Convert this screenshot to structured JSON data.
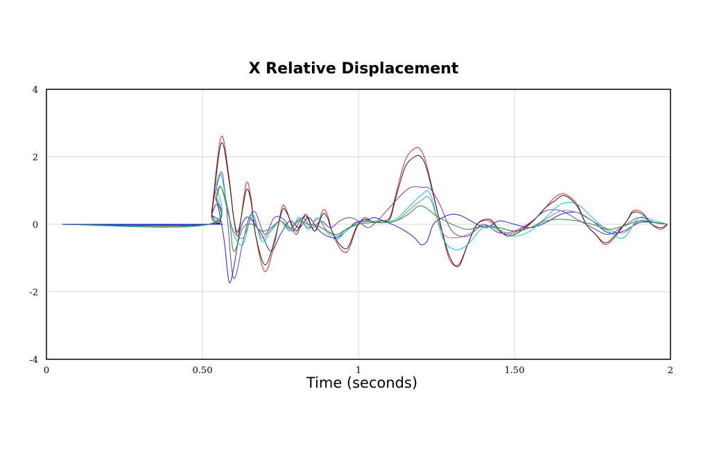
{
  "chart_data": {
    "type": "line",
    "title": "X Relative Displacement",
    "xlabel": "Time (seconds)",
    "ylabel": "",
    "xlim": [
      0,
      2
    ],
    "ylim": [
      -4,
      4
    ],
    "x_ticks": [
      0,
      0.5,
      1,
      1.5,
      2
    ],
    "x_tick_labels": [
      "0",
      "0.50",
      "1",
      "1.50",
      "2"
    ],
    "y_ticks": [
      4,
      2,
      0,
      -2,
      -4
    ],
    "y_tick_labels": [
      "4",
      "2",
      "0",
      "-2",
      "-4"
    ],
    "grid": true,
    "legend": "none",
    "series": [
      {
        "color": "#e02020",
        "x": [
          0.05,
          0.52,
          0.53,
          0.56,
          0.585,
          0.6,
          0.615,
          0.64,
          0.655,
          0.67,
          0.7,
          0.73,
          0.755,
          0.77,
          0.8,
          0.83,
          0.86,
          0.885,
          0.9,
          0.915,
          0.94,
          0.965,
          0.99,
          1.0,
          1.02,
          1.05,
          1.07,
          1.1,
          1.12,
          1.15,
          1.18,
          1.2,
          1.22,
          1.26,
          1.29,
          1.32,
          1.35,
          1.38,
          1.42,
          1.45,
          1.48,
          1.52,
          1.56,
          1.6,
          1.63,
          1.66,
          1.7,
          1.73,
          1.76,
          1.79,
          1.82,
          1.86,
          1.88,
          1.91,
          1.94,
          1.97,
          1.99
        ],
        "y": [
          0,
          0,
          0.4,
          2.6,
          1.4,
          0.2,
          -0.3,
          1.2,
          0.8,
          -0.3,
          -1.4,
          -0.6,
          0.5,
          0.4,
          -0.3,
          0.3,
          -0.2,
          0.4,
          0.3,
          -0.2,
          -0.7,
          -0.8,
          -0.2,
          0,
          0.2,
          0.05,
          0.1,
          0.2,
          0.9,
          1.9,
          2.25,
          2.2,
          1.7,
          0.1,
          -1.0,
          -1.2,
          -0.6,
          0,
          0.1,
          -0.2,
          -0.3,
          -0.15,
          0.1,
          0.5,
          0.8,
          0.9,
          0.6,
          0,
          -0.3,
          -0.6,
          -0.4,
          0.1,
          0.4,
          0.35,
          0,
          -0.15,
          0
        ]
      },
      {
        "color": "#1a1a1a",
        "x": [
          0.05,
          0.52,
          0.53,
          0.56,
          0.585,
          0.6,
          0.615,
          0.64,
          0.655,
          0.67,
          0.7,
          0.73,
          0.755,
          0.77,
          0.8,
          0.83,
          0.86,
          0.885,
          0.9,
          0.915,
          0.94,
          0.965,
          0.99,
          1.0,
          1.02,
          1.05,
          1.07,
          1.1,
          1.12,
          1.15,
          1.18,
          1.2,
          1.22,
          1.26,
          1.29,
          1.32,
          1.35,
          1.38,
          1.42,
          1.45,
          1.48,
          1.52,
          1.56,
          1.6,
          1.63,
          1.66,
          1.7,
          1.73,
          1.76,
          1.79,
          1.82,
          1.86,
          1.88,
          1.91,
          1.94,
          1.97,
          1.99
        ],
        "y": [
          0,
          0,
          0.3,
          2.4,
          1.3,
          0.2,
          -0.2,
          1.0,
          0.7,
          -0.3,
          -1.2,
          -0.5,
          0.4,
          0.35,
          -0.2,
          0.25,
          -0.2,
          0.3,
          0.2,
          -0.2,
          -0.6,
          -0.7,
          -0.15,
          0,
          0.15,
          0.05,
          0.1,
          0.15,
          0.8,
          1.7,
          2.0,
          2.0,
          1.6,
          0.1,
          -0.9,
          -1.25,
          -0.6,
          0,
          0.15,
          -0.15,
          -0.35,
          -0.2,
          0.1,
          0.5,
          0.7,
          0.85,
          0.55,
          0,
          -0.3,
          -0.55,
          -0.35,
          0.1,
          0.35,
          0.3,
          0,
          -0.1,
          0
        ]
      },
      {
        "color": "#7030d0",
        "x": [
          0.05,
          0.52,
          0.54,
          0.56,
          0.57,
          0.58,
          0.6,
          0.63,
          0.65,
          0.67,
          0.7,
          0.73,
          0.76,
          0.79,
          0.82,
          0.85,
          0.88,
          0.91,
          0.94,
          0.97,
          1.0,
          1.03,
          1.06,
          1.1,
          1.14,
          1.17,
          1.2,
          1.23,
          1.26,
          1.3,
          1.35,
          1.4,
          1.45,
          1.5,
          1.55,
          1.6,
          1.65,
          1.7,
          1.75,
          1.8,
          1.85,
          1.9,
          1.95,
          1.99
        ],
        "y": [
          0,
          0,
          0.9,
          1.55,
          1.1,
          0.2,
          -1.6,
          -0.5,
          0.2,
          0.35,
          -0.3,
          0.2,
          0.15,
          -0.2,
          0.2,
          -0.1,
          0.1,
          -0.1,
          0.1,
          0.2,
          0.1,
          -0.1,
          0.1,
          0.5,
          0.9,
          1.1,
          1.1,
          1.05,
          0.6,
          -0.2,
          -0.35,
          0,
          -0.25,
          -0.2,
          0.05,
          0.4,
          0.4,
          0.15,
          -0.1,
          -0.3,
          -0.05,
          0.2,
          0.05,
          0
        ]
      },
      {
        "color": "#2020d0",
        "x": [
          0.05,
          0.52,
          0.53,
          0.545,
          0.555,
          0.57,
          0.585,
          0.6,
          0.62,
          0.64,
          0.66,
          0.69,
          0.72,
          0.75,
          0.78,
          0.81,
          0.84,
          0.87,
          0.9,
          0.93,
          0.96,
          0.99,
          1.02,
          1.05,
          1.08,
          1.12,
          1.15,
          1.18,
          1.2,
          1.22,
          1.24,
          1.27,
          1.3,
          1.33,
          1.37,
          1.41,
          1.45,
          1.5,
          1.55,
          1.6,
          1.65,
          1.7,
          1.75,
          1.8,
          1.85,
          1.9,
          1.95,
          1.99
        ],
        "y": [
          0,
          0,
          0.3,
          0.6,
          0.3,
          -0.5,
          -1.7,
          -1.3,
          -0.2,
          0.2,
          0.1,
          -0.3,
          -0.8,
          -0.3,
          0.1,
          -0.1,
          0.2,
          -0.15,
          -0.35,
          -0.4,
          -0.2,
          0.05,
          0.1,
          0.2,
          0.1,
          -0.05,
          -0.2,
          -0.4,
          -0.6,
          -0.5,
          0,
          0.2,
          0.3,
          0.25,
          0.05,
          -0.1,
          0.1,
          0,
          -0.1,
          0.05,
          0.3,
          0.35,
          0.1,
          -0.25,
          -0.2,
          0.05,
          0.05,
          0
        ]
      },
      {
        "color": "#00cccc",
        "x": [
          0.05,
          0.52,
          0.545,
          0.56,
          0.58,
          0.6,
          0.63,
          0.66,
          0.69,
          0.72,
          0.75,
          0.78,
          0.81,
          0.84,
          0.87,
          0.9,
          0.93,
          0.96,
          1.0,
          1.04,
          1.08,
          1.12,
          1.16,
          1.2,
          1.23,
          1.27,
          1.31,
          1.35,
          1.4,
          1.45,
          1.5,
          1.55,
          1.6,
          1.65,
          1.7,
          1.75,
          1.8,
          1.85,
          1.9,
          1.95,
          1.99
        ],
        "y": [
          0,
          0,
          1.2,
          1.45,
          0.5,
          -0.3,
          -0.6,
          0.3,
          -0.5,
          -0.2,
          0.1,
          -0.2,
          0.2,
          -0.15,
          0.2,
          -0.25,
          -0.45,
          -0.2,
          0.05,
          0.1,
          0.05,
          0.15,
          0.5,
          0.85,
          0.9,
          -0.4,
          -0.75,
          -0.6,
          -0.1,
          -0.15,
          -0.35,
          -0.2,
          0.2,
          0.6,
          0.6,
          0.2,
          -0.2,
          -0.4,
          0.2,
          0.1,
          0
        ]
      },
      {
        "color": "#808080",
        "x": [
          0.05,
          0.52,
          0.545,
          0.56,
          0.58,
          0.6,
          0.63,
          0.66,
          0.69,
          0.72,
          0.75,
          0.78,
          0.81,
          0.84,
          0.87,
          0.9,
          0.93,
          0.96,
          1.0,
          1.04,
          1.08,
          1.12,
          1.16,
          1.2,
          1.23,
          1.27,
          1.31,
          1.35,
          1.4,
          1.45,
          1.5,
          1.55,
          1.6,
          1.65,
          1.7,
          1.75,
          1.8,
          1.85,
          1.9,
          1.95,
          1.99
        ],
        "y": [
          0,
          0,
          0.9,
          1.1,
          0.4,
          -0.2,
          -0.4,
          0.2,
          -0.4,
          -0.15,
          0.1,
          -0.15,
          0.15,
          -0.1,
          0.15,
          -0.2,
          -0.35,
          -0.15,
          0.05,
          0.08,
          0.05,
          0.1,
          0.4,
          0.7,
          0.75,
          -0.25,
          -0.4,
          -0.3,
          -0.05,
          -0.1,
          -0.2,
          -0.1,
          0.15,
          0.4,
          0.35,
          0.1,
          -0.15,
          -0.25,
          0.1,
          0.05,
          0
        ]
      },
      {
        "color": "#2a8a2a",
        "x": [
          0.05,
          0.52,
          0.545,
          0.56,
          0.585,
          0.6,
          0.63,
          0.66,
          0.69,
          0.72,
          0.75,
          0.78,
          0.81,
          0.84,
          0.87,
          0.9,
          0.93,
          0.96,
          1.0,
          1.04,
          1.08,
          1.12,
          1.16,
          1.2,
          1.25,
          1.3,
          1.35,
          1.4,
          1.45,
          1.5,
          1.55,
          1.6,
          1.65,
          1.7,
          1.75,
          1.8,
          1.85,
          1.9,
          1.95,
          1.99
        ],
        "y": [
          0,
          0,
          0.8,
          1.1,
          0.3,
          -0.8,
          -0.1,
          0,
          -0.2,
          -0.1,
          0.1,
          -0.1,
          0.1,
          0,
          -0.05,
          -0.2,
          -0.3,
          -0.15,
          0,
          0.05,
          0.05,
          0.1,
          0.3,
          0.55,
          0.25,
          0,
          -0.15,
          -0.05,
          -0.1,
          -0.2,
          -0.1,
          0.1,
          0.15,
          0.1,
          0,
          -0.15,
          -0.05,
          0.1,
          0.05,
          0
        ]
      },
      {
        "color": "#2030c0",
        "x": [
          0.05,
          0.52,
          0.55
        ],
        "y": [
          0,
          0,
          0
        ]
      }
    ]
  }
}
